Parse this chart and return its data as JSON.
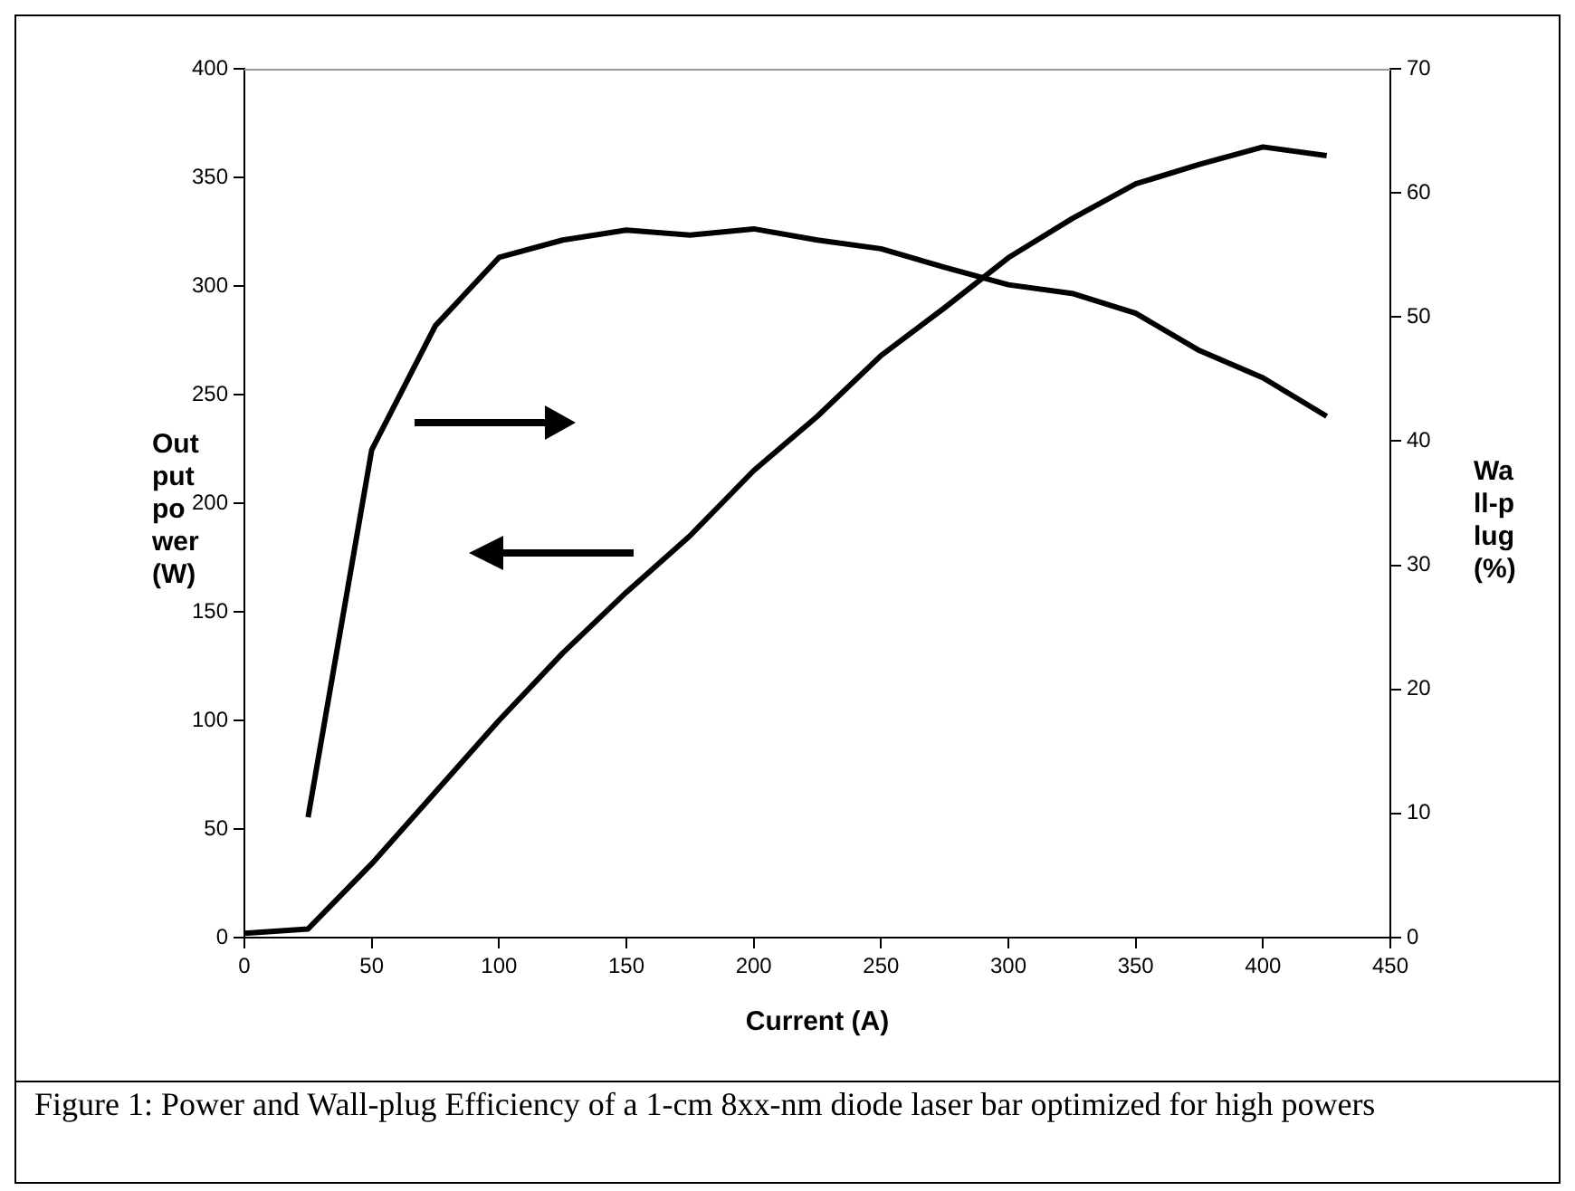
{
  "chart_data": {
    "type": "line",
    "xlabel": "Current (A)",
    "ylabel": "Output power (W)",
    "y2label": "Wall-plug (%)",
    "xlim": [
      0,
      450
    ],
    "xticks": [
      0,
      50,
      100,
      150,
      200,
      250,
      300,
      350,
      400,
      450
    ],
    "ylim": [
      0,
      400
    ],
    "yticks": [
      0,
      50,
      100,
      150,
      200,
      250,
      300,
      350,
      400
    ],
    "y2lim": [
      0,
      70
    ],
    "y2ticks": [
      0,
      10,
      20,
      30,
      40,
      50,
      60,
      70
    ],
    "grid": false,
    "legend": false,
    "marker": "none",
    "line_style": "solid",
    "series": [
      {
        "color": "#000000",
        "x": [
          0,
          25,
          50,
          75,
          100,
          125,
          150,
          175,
          200,
          225,
          250,
          275,
          300,
          325,
          350,
          375,
          400,
          425
        ],
        "values": [
          2,
          4,
          34,
          67,
          100,
          131,
          159,
          185,
          215,
          240,
          268,
          290,
          313,
          331,
          347,
          356,
          364,
          360
        ]
      },
      {
        "color": "#000000",
        "axis": "y2",
        "x": [
          25,
          50,
          75,
          100,
          125,
          150,
          175,
          200,
          225,
          250,
          275,
          300,
          325,
          350,
          375,
          400,
          425
        ],
        "values": [
          9.7,
          39.3,
          49.3,
          54.8,
          56.2,
          57.0,
          56.6,
          57.1,
          56.2,
          55.5,
          54.0,
          52.6,
          51.9,
          50.3,
          47.3,
          45.1,
          42.0
        ]
      }
    ],
    "annotations": [
      "Figure 1: Power and Wall-plug Efficiency of a 1-cm 8xx-nm diode laser bar optimized for high powers"
    ]
  }
}
